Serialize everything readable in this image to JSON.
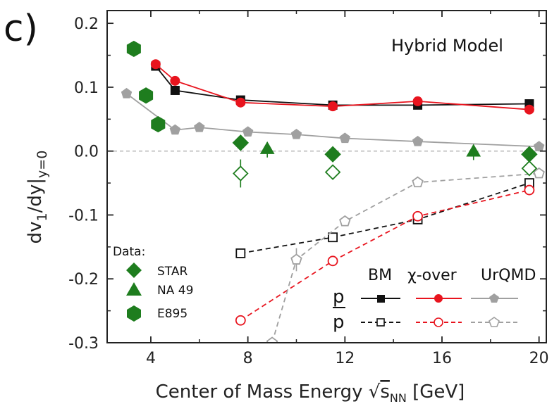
{
  "chart_data": {
    "type": "scatter",
    "panel_label": "c)",
    "annotation": "Hybrid Model",
    "xlabel": {
      "main": "Center of Mass Energy ",
      "sqrt": "√",
      "s": "s",
      "sub": "NN",
      "unit": " [GeV]"
    },
    "ylabel": {
      "main": "dv",
      "sub1": "1",
      "mid": "/dy|",
      "sub2": "y=0"
    },
    "xlim": [
      2.2,
      20.3
    ],
    "ylim": [
      -0.3,
      0.22
    ],
    "xticks": [
      4,
      8,
      12,
      16,
      20
    ],
    "xticks_minor": [
      6,
      10,
      14,
      18
    ],
    "yticks": [
      -0.3,
      -0.2,
      -0.1,
      0.0,
      0.1,
      0.2
    ],
    "ytick_labels": [
      "-0.3",
      "-0.2",
      "-0.1",
      "0.0",
      "0.1",
      "0.2"
    ],
    "zero_line": true,
    "colors": {
      "bm": "#111111",
      "chi": "#e8141e",
      "urqmd": "#a0a0a0",
      "data": "#1e7d1e"
    },
    "model_header": {
      "bm": "BM",
      "chi": "χ-over",
      "urqmd": "UrQMD"
    },
    "model_rows": {
      "p": "p",
      "pbar": "p"
    },
    "data_legend": {
      "title": "Data:",
      "items": [
        "STAR",
        "NA 49",
        "E895"
      ]
    },
    "series": [
      {
        "key": "bm_p",
        "group": "BM",
        "particle": "p",
        "marker": "square",
        "filled": true,
        "line": "solid",
        "x": [
          4.2,
          5.0,
          7.7,
          11.5,
          15.0,
          19.6
        ],
        "y": [
          0.133,
          0.095,
          0.08,
          0.072,
          0.072,
          0.074
        ]
      },
      {
        "key": "chi_p",
        "group": "chi-over",
        "particle": "p",
        "marker": "circle",
        "filled": true,
        "line": "solid",
        "x": [
          4.2,
          5.0,
          7.7,
          11.5,
          15.0,
          19.6
        ],
        "y": [
          0.136,
          0.11,
          0.076,
          0.07,
          0.078,
          0.065
        ]
      },
      {
        "key": "urqmd_p",
        "group": "UrQMD",
        "particle": "p",
        "marker": "pentagon",
        "filled": true,
        "line": "solid",
        "x": [
          3.0,
          5.0,
          6.0,
          8.0,
          10.0,
          12.0,
          15.0,
          20.0
        ],
        "y": [
          0.09,
          0.033,
          0.037,
          0.03,
          0.026,
          0.02,
          0.015,
          0.007
        ]
      },
      {
        "key": "bm_pbar",
        "group": "BM",
        "particle": "pbar",
        "marker": "square",
        "filled": false,
        "line": "dashed",
        "x": [
          7.7,
          11.5,
          15.0,
          19.6
        ],
        "y": [
          -0.16,
          -0.135,
          -0.107,
          -0.05
        ]
      },
      {
        "key": "chi_pbar",
        "group": "chi-over",
        "particle": "pbar",
        "marker": "circle",
        "filled": false,
        "line": "dashed",
        "x": [
          7.7,
          11.5,
          15.0,
          19.6
        ],
        "y": [
          -0.265,
          -0.172,
          -0.102,
          -0.061
        ],
        "err": [
          0.008,
          0.0,
          0.0,
          0.0
        ]
      },
      {
        "key": "urqmd_pbar",
        "group": "UrQMD",
        "particle": "pbar",
        "marker": "pentagon",
        "filled": false,
        "line": "dashed",
        "x": [
          9.0,
          10.0,
          12.0,
          15.0,
          20.0
        ],
        "y": [
          -0.3,
          -0.17,
          -0.11,
          -0.049,
          -0.035
        ],
        "err": [
          0.0,
          0.018,
          0.0,
          0.0,
          0.0
        ]
      },
      {
        "key": "star_p",
        "group": "STAR",
        "particle": "p",
        "marker": "diamond",
        "filled": true,
        "line": "none",
        "x": [
          7.7,
          11.5,
          19.6
        ],
        "y": [
          0.013,
          -0.005,
          -0.005
        ]
      },
      {
        "key": "star_pbar",
        "group": "STAR",
        "particle": "pbar",
        "marker": "diamond",
        "filled": false,
        "line": "none",
        "x": [
          7.7,
          11.5,
          19.6
        ],
        "y": [
          -0.035,
          -0.033,
          -0.027
        ],
        "err": [
          0.022,
          0.0,
          0.0
        ]
      },
      {
        "key": "na49_p",
        "group": "NA 49",
        "particle": "p",
        "marker": "triangle",
        "filled": true,
        "line": "none",
        "x": [
          8.8,
          17.3
        ],
        "y": [
          0.002,
          -0.002
        ],
        "err": [
          0.012,
          0.012
        ]
      },
      {
        "key": "e895_p",
        "group": "E895",
        "particle": "p",
        "marker": "hexagon",
        "filled": true,
        "line": "none",
        "x": [
          3.3,
          3.8,
          4.3
        ],
        "y": [
          0.16,
          0.087,
          0.042
        ]
      }
    ]
  }
}
